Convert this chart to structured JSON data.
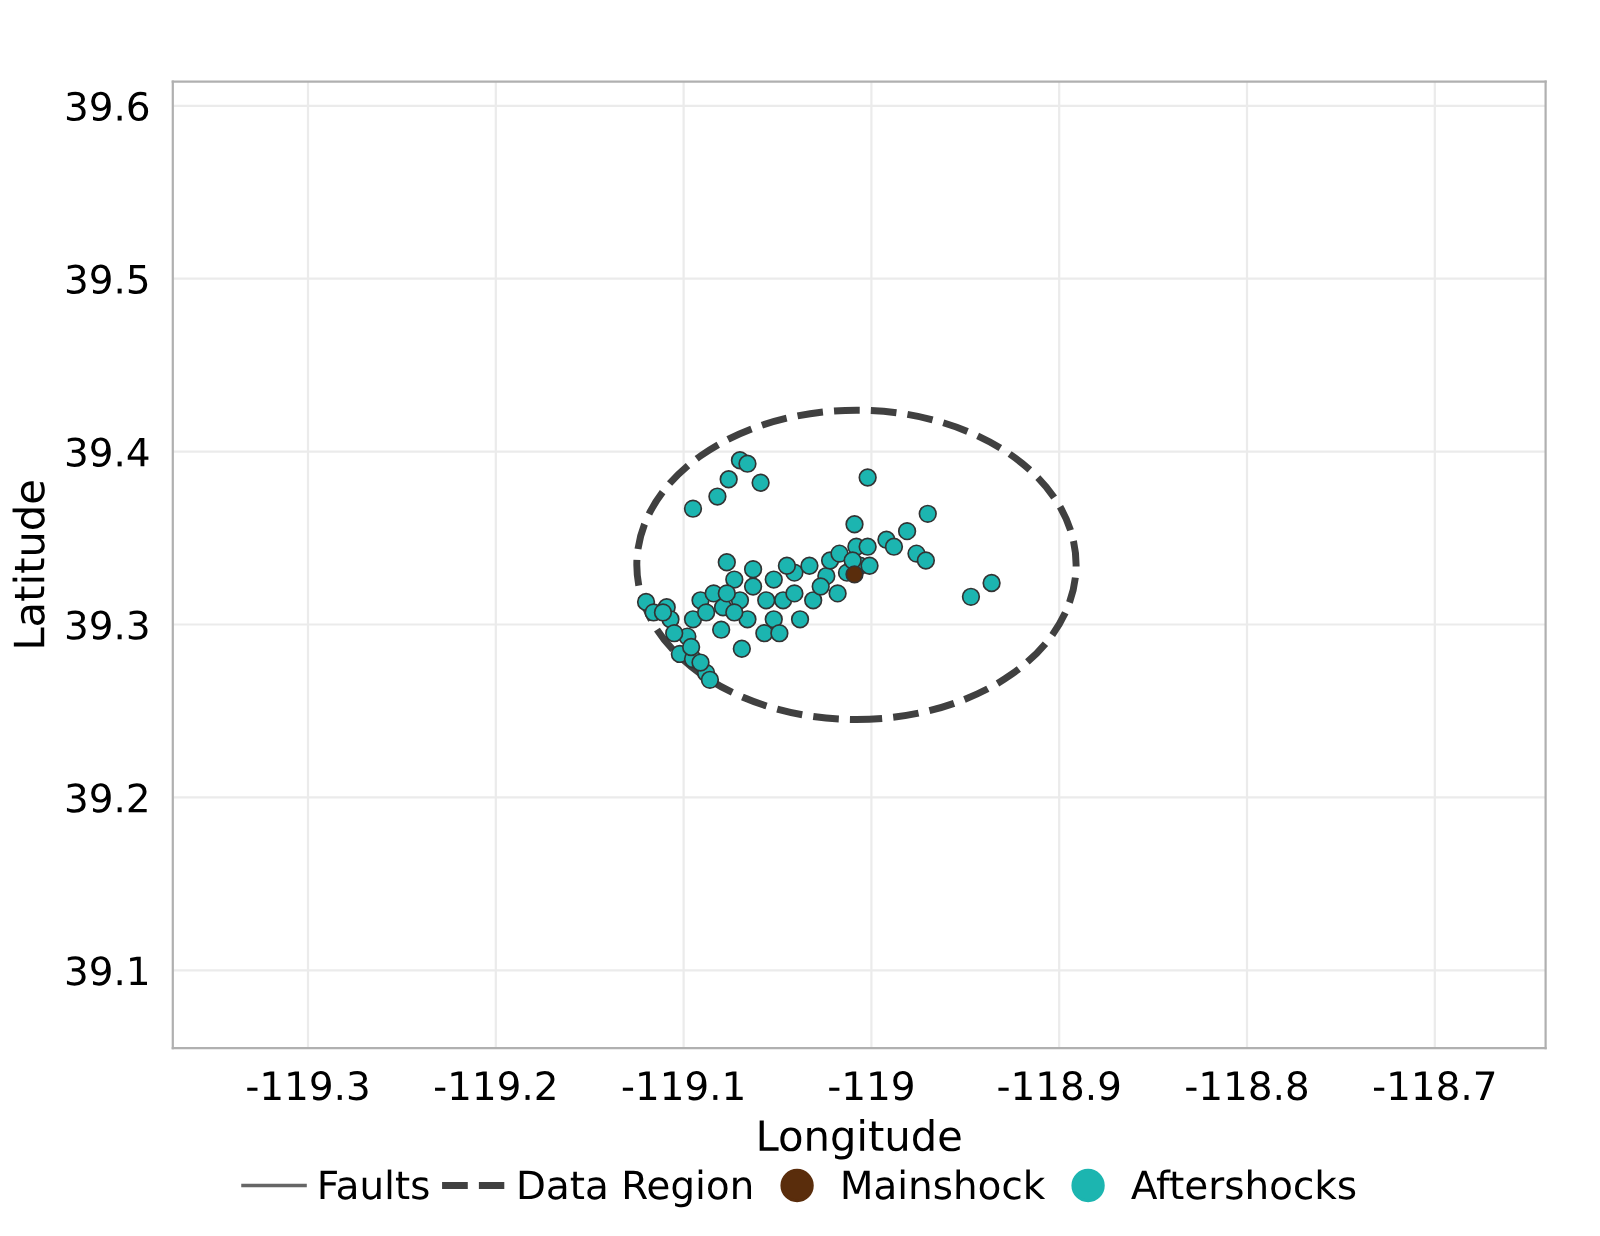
{
  "chart_data": {
    "type": "scatter",
    "xlabel": "Longitude",
    "ylabel": "Latitude",
    "xlim": [
      -119.372,
      -118.641
    ],
    "ylim": [
      39.055,
      39.614
    ],
    "xticks": [
      -119.3,
      -119.2,
      -119.1,
      -119,
      -118.9,
      -118.8,
      -118.7
    ],
    "yticks": [
      39.1,
      39.2,
      39.3,
      39.4,
      39.5,
      39.6
    ],
    "grid": true,
    "legend": "bottom",
    "marker": "circle",
    "series": [
      {
        "name": "Faults",
        "type": "line",
        "line_style": "solid",
        "marker": "none",
        "color": "#666666"
      },
      {
        "name": "Data Region",
        "type": "line",
        "line_style": "dashed",
        "marker": "none",
        "color": "#404040"
      },
      {
        "name": "Mainshock",
        "type": "scatter",
        "color": "#5a2d0c",
        "x": [
          -119.009
        ],
        "values": [
          39.329
        ]
      },
      {
        "name": "Aftershocks",
        "type": "scatter",
        "color": "#1cb5b0",
        "x": [
          -119.07,
          -119.066,
          -119.076,
          -119.059,
          -119.082,
          -119.095,
          -119.002,
          -119.009,
          -118.97,
          -118.947,
          -118.936,
          -119.069,
          -119.077,
          -119.12,
          -119.116,
          -119.109,
          -119.107,
          -119.098,
          -119.105,
          -119.102,
          -119.095,
          -119.088,
          -119.086,
          -119.091,
          -119.095,
          -119.084,
          -119.079,
          -119.08,
          -119.073,
          -119.07,
          -119.063,
          -119.066,
          -119.057,
          -119.056,
          -119.052,
          -119.047,
          -119.041,
          -119.038,
          -119.041,
          -119.033,
          -119.031,
          -119.024,
          -119.022,
          -119.018,
          -119.017,
          -119.013,
          -119.008,
          -119.006,
          -119.002,
          -119.001,
          -118.992,
          -118.988,
          -118.981,
          -118.976,
          -118.971,
          -119.045,
          -119.063,
          -119.077,
          -119.088,
          -119.111,
          -119.096,
          -119.091,
          -119.073,
          -119.052,
          -119.027,
          -119.01,
          -119.049
        ],
        "values": [
          39.395,
          39.393,
          39.384,
          39.382,
          39.374,
          39.367,
          39.385,
          39.358,
          39.364,
          39.316,
          39.324,
          39.286,
          39.336,
          39.313,
          39.307,
          39.31,
          39.303,
          39.293,
          39.295,
          39.283,
          39.28,
          39.272,
          39.268,
          39.314,
          39.303,
          39.318,
          39.31,
          39.297,
          39.326,
          39.314,
          39.322,
          39.303,
          39.295,
          39.314,
          39.326,
          39.314,
          39.318,
          39.303,
          39.33,
          39.334,
          39.314,
          39.328,
          39.337,
          39.318,
          39.341,
          39.33,
          39.345,
          39.334,
          39.345,
          39.334,
          39.349,
          39.345,
          39.354,
          39.341,
          39.337,
          39.334,
          39.332,
          39.318,
          39.307,
          39.307,
          39.287,
          39.278,
          39.307,
          39.303,
          39.322,
          39.337,
          39.295
        ]
      }
    ]
  }
}
